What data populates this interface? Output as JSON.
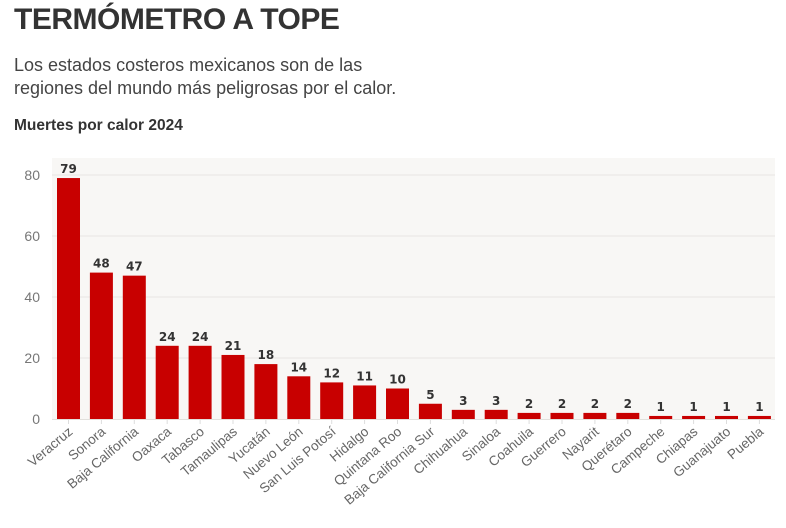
{
  "header": {
    "title": "TERMÓMETRO A TOPE",
    "subtitle_line1": "Los estados costeros mexicanos son de las",
    "subtitle_line2": "regiones del mundo más peligrosas por el calor.",
    "chart_label": "Muertes por calor 2024"
  },
  "colors": {
    "bar": "#c80000",
    "plot_background": "#f8f7f5",
    "grid": "#e8e6e2",
    "text_dark": "#333333"
  },
  "chart_data": {
    "type": "bar",
    "title": "Muertes por calor 2024",
    "xlabel": "",
    "ylabel": "",
    "ylim": [
      0,
      85
    ],
    "yticks": [
      0,
      20,
      40,
      60,
      80
    ],
    "grid": true,
    "legend": "none",
    "categories": [
      "Veracruz",
      "Sonora",
      "Baja California",
      "Oaxaca",
      "Tabasco",
      "Tamaulipas",
      "Yucatán",
      "Nuevo León",
      "San Luis Potosí",
      "Hidalgo",
      "Quintana Roo",
      "Baja California Sur",
      "Chihuahua",
      "Sinaloa",
      "Coahuila",
      "Guerrero",
      "Nayarit",
      "Querétaro",
      "Campeche",
      "Chiapas",
      "Guanajuato",
      "Puebla"
    ],
    "values": [
      79,
      48,
      47,
      24,
      24,
      21,
      18,
      14,
      12,
      11,
      10,
      5,
      3,
      3,
      2,
      2,
      2,
      2,
      1,
      1,
      1,
      1
    ]
  }
}
